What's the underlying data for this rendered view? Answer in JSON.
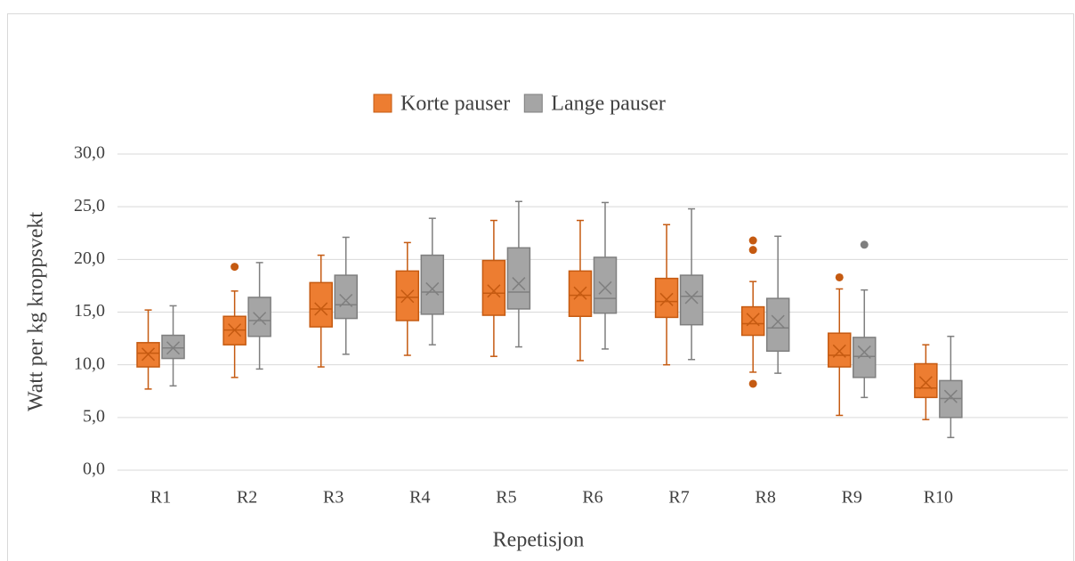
{
  "chart_data": {
    "type": "box",
    "x_label": "Repetisjon",
    "y_label": "Watt per kg kroppsvekt",
    "categories": [
      "R1",
      "R2",
      "R3",
      "R4",
      "R5",
      "R6",
      "R7",
      "R8",
      "R9",
      "R10",
      null
    ],
    "ylim": [
      0,
      30
    ],
    "yticks": [
      {
        "value": 0,
        "label": "0,0"
      },
      {
        "value": 5,
        "label": "5,0"
      },
      {
        "value": 10,
        "label": "10,0"
      },
      {
        "value": 15,
        "label": "15,0"
      },
      {
        "value": 20,
        "label": "20,0"
      },
      {
        "value": 25,
        "label": "25,0"
      },
      {
        "value": 30,
        "label": "30,0"
      }
    ],
    "grid": true,
    "legend": "top",
    "series": [
      {
        "name": "Korte pauser",
        "color": "#ed7d31",
        "border_color": "#c55a11",
        "min": [
          7.7,
          8.8,
          9.8,
          10.9,
          10.8,
          10.4,
          10.0,
          9.3,
          5.2,
          4.8,
          null
        ],
        "q1": [
          9.8,
          11.9,
          13.6,
          14.2,
          14.7,
          14.6,
          14.5,
          12.8,
          9.8,
          6.9,
          null
        ],
        "median": [
          11.1,
          13.3,
          15.3,
          16.4,
          16.8,
          16.6,
          16.0,
          13.9,
          10.9,
          7.8,
          null
        ],
        "q3": [
          12.1,
          14.6,
          17.8,
          18.9,
          19.9,
          18.9,
          18.2,
          15.5,
          13.0,
          10.1,
          null
        ],
        "max": [
          15.2,
          17.0,
          20.4,
          21.6,
          23.7,
          23.7,
          23.3,
          17.9,
          17.2,
          11.9,
          null
        ],
        "mean": [
          11.0,
          13.3,
          15.3,
          16.5,
          17.0,
          16.8,
          16.2,
          14.3,
          11.3,
          8.3,
          null
        ],
        "outliers": [
          [],
          [
            19.3
          ],
          [],
          [],
          [],
          [],
          [],
          [
            21.8,
            20.9,
            8.2
          ],
          [
            18.3
          ],
          [],
          []
        ]
      },
      {
        "name": "Lange pauser",
        "color": "#a5a5a5",
        "border_color": "#7f7f7f",
        "min": [
          8.0,
          9.6,
          11.0,
          11.9,
          11.7,
          11.5,
          10.5,
          9.2,
          6.9,
          3.1,
          null
        ],
        "q1": [
          10.6,
          12.7,
          14.4,
          14.8,
          15.3,
          14.9,
          13.8,
          11.3,
          8.8,
          5.0,
          null
        ],
        "median": [
          11.6,
          14.2,
          15.7,
          16.9,
          16.9,
          16.3,
          16.5,
          13.5,
          10.8,
          6.8,
          null
        ],
        "q3": [
          12.8,
          16.4,
          18.5,
          20.4,
          21.1,
          20.2,
          18.5,
          16.3,
          12.6,
          8.5,
          null
        ],
        "max": [
          15.6,
          19.7,
          22.1,
          23.9,
          25.5,
          25.4,
          24.8,
          22.2,
          17.1,
          12.7,
          null
        ],
        "mean": [
          11.6,
          14.4,
          16.1,
          17.2,
          17.7,
          17.3,
          16.4,
          14.1,
          11.2,
          7.0,
          null
        ],
        "outliers": [
          [],
          [],
          [],
          [],
          [],
          [],
          [],
          [],
          [
            21.4
          ],
          [],
          []
        ]
      }
    ]
  }
}
